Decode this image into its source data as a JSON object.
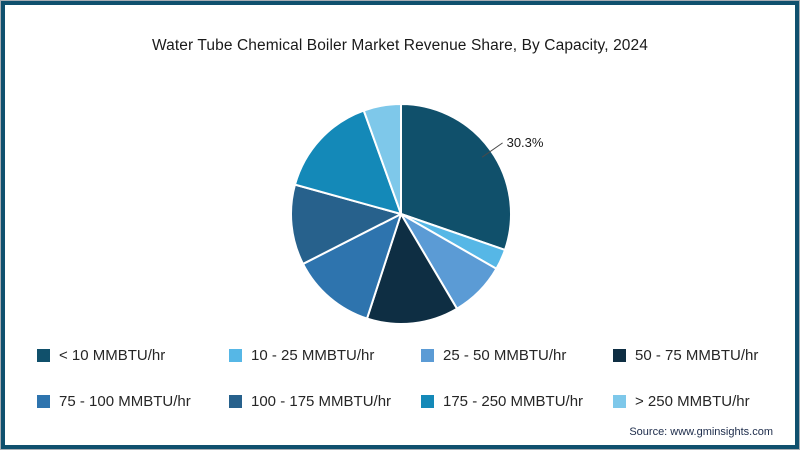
{
  "page": {
    "source": "Source: www.gminsights.com",
    "frame_color": "#10506e",
    "background": "#ffffff"
  },
  "chart_data": {
    "type": "pie",
    "title": "Water Tube Chemical Boiler Market Revenue Share, By Capacity, 2024",
    "unit": "percent",
    "legend_position": "bottom",
    "labeled_slice": "< 10 MMBTU/hr",
    "slices": [
      {
        "label": "< 10 MMBTU/hr",
        "value": 30.3,
        "color": "#10506b"
      },
      {
        "label": "10 - 25 MMBTU/hr",
        "value": 3.0,
        "color": "#56b7e6"
      },
      {
        "label": "25 - 50 MMBTU/hr",
        "value": 8.2,
        "color": "#5b9bd5"
      },
      {
        "label": "50 - 75 MMBTU/hr",
        "value": 13.5,
        "color": "#0e2e43"
      },
      {
        "label": "75 - 100 MMBTU/hr",
        "value": 12.5,
        "color": "#2e74ae"
      },
      {
        "label": "100 - 175 MMBTU/hr",
        "value": 11.8,
        "color": "#27618c"
      },
      {
        "label": "175 - 250 MMBTU/hr",
        "value": 15.2,
        "color": "#1489b8"
      },
      {
        "label": "> 250 MMBTU/hr",
        "value": 5.5,
        "color": "#7ec8ea"
      }
    ],
    "callout": {
      "text": "30.3%",
      "slice_label": "< 10 MMBTU/hr",
      "angle_deg": 55
    }
  }
}
